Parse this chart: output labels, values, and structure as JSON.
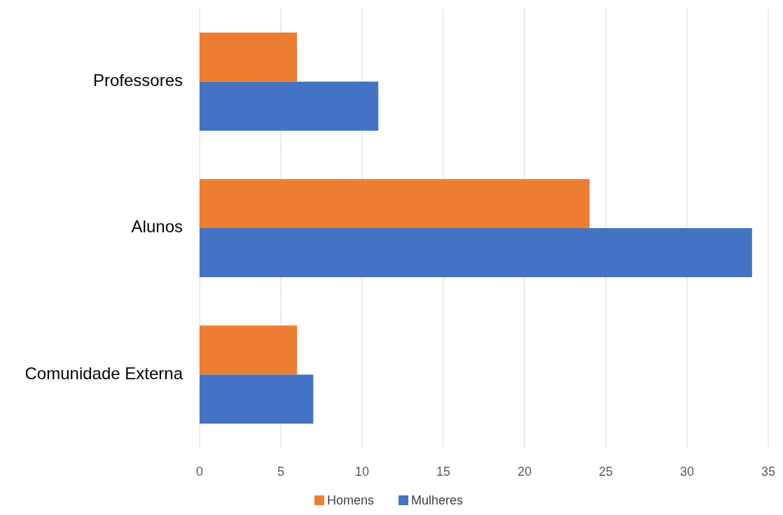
{
  "chart_data": {
    "type": "bar",
    "orientation": "horizontal",
    "categories": [
      "Professores",
      "Alunos",
      "Comunidade Externa"
    ],
    "series": [
      {
        "name": "Homens",
        "color": "#ed7d31",
        "values": [
          6,
          24,
          6
        ]
      },
      {
        "name": "Mulheres",
        "color": "#4472c4",
        "values": [
          11,
          34,
          7
        ]
      }
    ],
    "xlim": [
      0,
      35
    ],
    "xticks": [
      0,
      5,
      10,
      15,
      20,
      25,
      30,
      35
    ],
    "grid": "x",
    "legend": "bottom"
  }
}
